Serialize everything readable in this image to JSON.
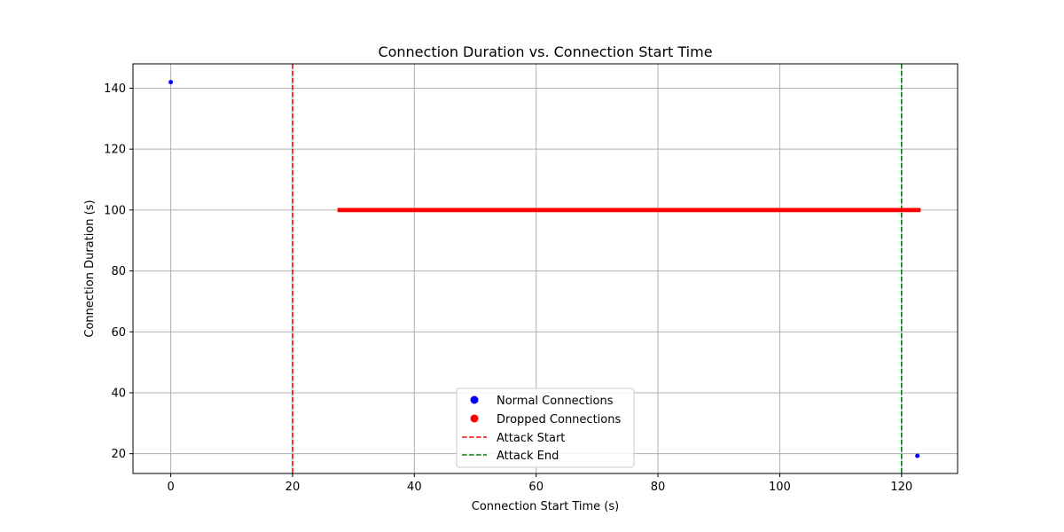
{
  "chart_data": {
    "type": "scatter",
    "title": "Connection Duration vs. Connection Start Time",
    "xlabel": "Connection Start Time (s)",
    "ylabel": "Connection Duration (s)",
    "xlim": [
      -6.2,
      129.2
    ],
    "ylim": [
      13.5,
      148
    ],
    "xticks": [
      0,
      20,
      40,
      60,
      80,
      100,
      120
    ],
    "yticks": [
      20,
      40,
      60,
      80,
      100,
      120,
      140
    ],
    "grid": true,
    "legend_position": "lower-center",
    "series": [
      {
        "name": "Normal Connections",
        "color": "#0000ff",
        "points": [
          [
            0,
            142
          ],
          [
            122.6,
            19.3
          ]
        ]
      },
      {
        "name": "Dropped Connections",
        "color": "#ff0000",
        "x_range": [
          27.5,
          123.0
        ],
        "y_values": [
          99.6,
          100.0,
          100.4
        ]
      }
    ],
    "vlines": [
      {
        "name": "Attack Start",
        "x": 20,
        "color": "#ff0000"
      },
      {
        "name": "Attack End",
        "x": 120,
        "color": "#008000"
      }
    ]
  }
}
